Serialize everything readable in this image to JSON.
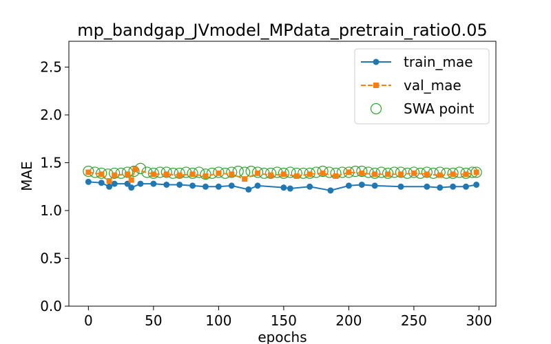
{
  "chart_data": {
    "type": "line",
    "title": "mp_bandgap_JVmodel_MPdata_pretrain_ratio0.05",
    "xlabel": "epochs",
    "ylabel": "MAE",
    "xlim": [
      -15,
      313
    ],
    "ylim": [
      0,
      2.77
    ],
    "xticks": [
      0,
      50,
      100,
      150,
      200,
      250,
      300
    ],
    "yticks": [
      0.0,
      0.5,
      1.0,
      1.5,
      2.0,
      2.5
    ],
    "xtick_labels": [
      "0",
      "50",
      "100",
      "150",
      "200",
      "250",
      "300"
    ],
    "ytick_labels": [
      "0.0",
      "0.5",
      "1.0",
      "1.5",
      "2.0",
      "2.5"
    ],
    "grid": false,
    "legend_position": "top-right",
    "series": [
      {
        "name": "train_mae",
        "color": "#1f77b4",
        "marker": "circle",
        "line": "solid",
        "x": [
          0,
          10,
          16,
          20,
          30,
          33,
          40,
          50,
          60,
          70,
          80,
          90,
          100,
          110,
          123,
          130,
          150,
          155,
          170,
          186,
          200,
          210,
          220,
          240,
          260,
          270,
          280,
          290,
          298
        ],
        "values": [
          1.3,
          1.29,
          1.25,
          1.28,
          1.28,
          1.24,
          1.28,
          1.28,
          1.27,
          1.27,
          1.26,
          1.25,
          1.25,
          1.26,
          1.22,
          1.26,
          1.24,
          1.23,
          1.25,
          1.21,
          1.26,
          1.27,
          1.26,
          1.25,
          1.25,
          1.24,
          1.25,
          1.25,
          1.27
        ]
      },
      {
        "name": "val_mae",
        "color": "#ff7f0e",
        "marker": "square",
        "line": "dashed",
        "x": [
          0,
          10,
          16,
          20,
          30,
          33,
          36,
          50,
          60,
          70,
          80,
          90,
          100,
          110,
          120,
          130,
          140,
          150,
          160,
          170,
          180,
          190,
          200,
          210,
          220,
          230,
          240,
          250,
          260,
          270,
          280,
          290,
          298
        ],
        "values": [
          1.4,
          1.38,
          1.31,
          1.37,
          1.38,
          1.32,
          1.43,
          1.38,
          1.38,
          1.37,
          1.38,
          1.36,
          1.39,
          1.38,
          1.33,
          1.39,
          1.37,
          1.38,
          1.36,
          1.38,
          1.39,
          1.36,
          1.4,
          1.39,
          1.38,
          1.38,
          1.38,
          1.39,
          1.38,
          1.37,
          1.38,
          1.38,
          1.4
        ]
      },
      {
        "name": "SWA point",
        "color": "#2ca02c",
        "marker": "open-circle",
        "line": "none",
        "x": [
          0,
          5,
          10,
          15,
          20,
          25,
          30,
          35,
          40,
          45,
          50,
          55,
          60,
          65,
          70,
          75,
          80,
          85,
          90,
          95,
          100,
          105,
          110,
          115,
          120,
          125,
          130,
          135,
          140,
          145,
          150,
          155,
          160,
          165,
          170,
          175,
          180,
          185,
          190,
          195,
          200,
          205,
          210,
          215,
          220,
          225,
          230,
          235,
          240,
          245,
          250,
          255,
          260,
          265,
          270,
          275,
          280,
          285,
          290,
          295,
          298
        ],
        "values": [
          1.41,
          1.4,
          1.39,
          1.38,
          1.39,
          1.39,
          1.4,
          1.41,
          1.44,
          1.4,
          1.39,
          1.4,
          1.4,
          1.39,
          1.39,
          1.4,
          1.39,
          1.4,
          1.38,
          1.39,
          1.4,
          1.39,
          1.4,
          1.41,
          1.4,
          1.41,
          1.4,
          1.39,
          1.39,
          1.4,
          1.39,
          1.4,
          1.39,
          1.39,
          1.39,
          1.4,
          1.41,
          1.4,
          1.39,
          1.4,
          1.4,
          1.41,
          1.41,
          1.4,
          1.39,
          1.4,
          1.39,
          1.4,
          1.4,
          1.39,
          1.4,
          1.39,
          1.4,
          1.39,
          1.4,
          1.39,
          1.39,
          1.4,
          1.39,
          1.4,
          1.4
        ]
      }
    ]
  }
}
